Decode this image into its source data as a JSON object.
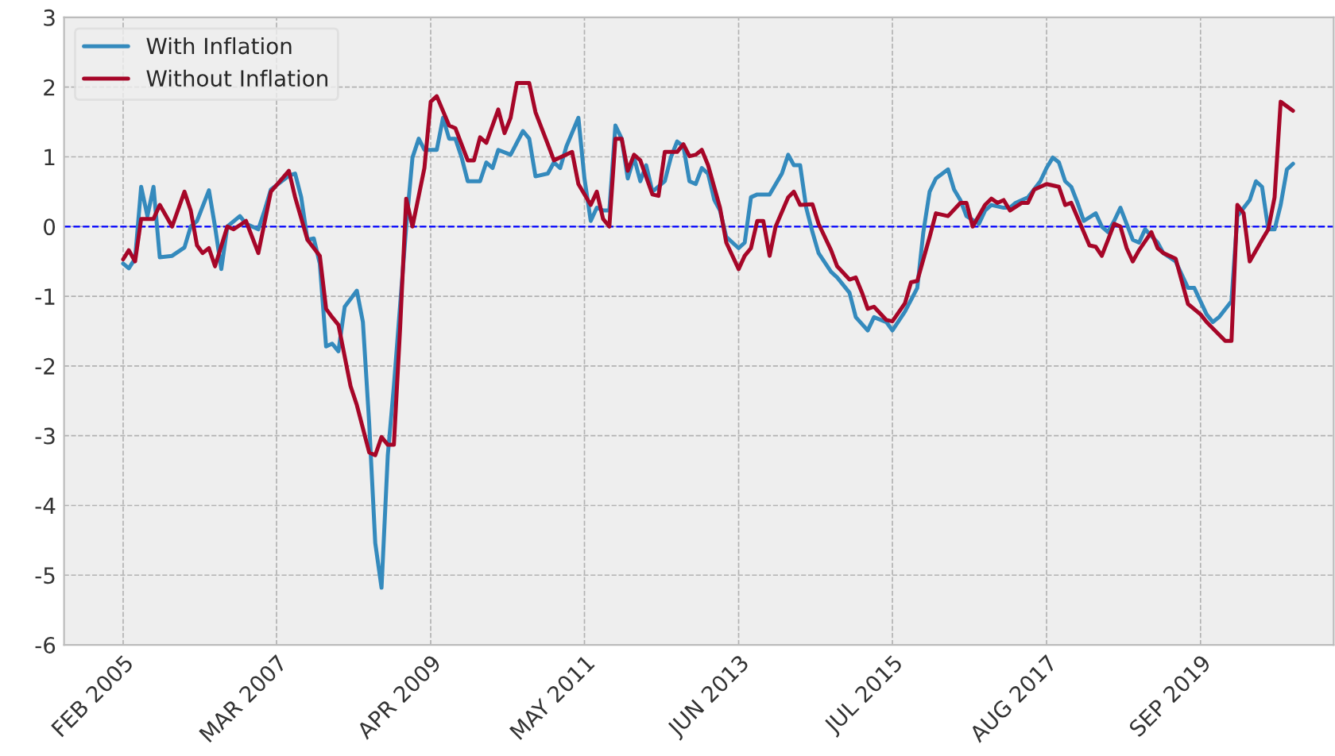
{
  "chart_data": {
    "type": "line",
    "series": [
      {
        "name": "With Inflation",
        "color": "#348abd",
        "x": [
          "2005-02",
          "2005-03",
          "2005-04",
          "2005-05",
          "2005-06",
          "2005-07",
          "2005-08",
          "2005-10",
          "2005-12",
          "2006-01",
          "2006-02",
          "2006-04",
          "2006-05",
          "2006-06",
          "2006-07",
          "2006-09",
          "2006-10",
          "2006-12",
          "2007-01",
          "2007-02",
          "2007-05",
          "2007-06",
          "2007-07",
          "2007-08",
          "2007-09",
          "2007-10",
          "2007-11",
          "2007-12",
          "2008-01",
          "2008-02",
          "2008-04",
          "2008-05",
          "2008-06",
          "2008-07",
          "2008-08",
          "2008-09",
          "2008-10",
          "2008-12",
          "2009-01",
          "2009-02",
          "2009-03",
          "2009-05",
          "2009-06",
          "2009-07",
          "2009-08",
          "2009-09",
          "2009-10",
          "2009-12",
          "2010-01",
          "2010-02",
          "2010-03",
          "2010-05",
          "2010-07",
          "2010-08",
          "2010-09",
          "2010-11",
          "2010-12",
          "2011-01",
          "2011-02",
          "2011-04",
          "2011-05",
          "2011-06",
          "2011-07",
          "2011-08",
          "2011-09",
          "2011-10",
          "2011-11",
          "2011-12",
          "2012-01",
          "2012-02",
          "2012-03",
          "2012-04",
          "2012-06",
          "2012-07",
          "2012-08",
          "2012-09",
          "2012-10",
          "2012-11",
          "2012-12",
          "2013-01",
          "2013-02",
          "2013-03",
          "2013-04",
          "2013-06",
          "2013-07",
          "2013-08",
          "2013-09",
          "2013-11",
          "2014-01",
          "2014-02",
          "2014-03",
          "2014-04",
          "2014-05",
          "2014-06",
          "2014-07",
          "2014-09",
          "2014-10",
          "2014-12",
          "2015-01",
          "2015-03",
          "2015-04",
          "2015-06",
          "2015-07",
          "2015-09",
          "2015-11",
          "2015-12",
          "2016-01",
          "2016-02",
          "2016-04",
          "2016-05",
          "2016-06",
          "2016-07",
          "2016-09",
          "2016-10",
          "2016-11",
          "2017-01",
          "2017-02",
          "2017-03",
          "2017-05",
          "2017-07",
          "2017-08",
          "2017-09",
          "2017-10",
          "2017-11",
          "2017-12",
          "2018-01",
          "2018-02",
          "2018-04",
          "2018-05",
          "2018-06",
          "2018-07",
          "2018-08",
          "2018-10",
          "2018-11",
          "2018-12",
          "2019-02",
          "2019-03",
          "2019-05",
          "2019-07",
          "2019-08",
          "2019-10",
          "2019-11",
          "2019-12",
          "2020-02",
          "2020-03",
          "2020-05",
          "2020-06",
          "2020-07",
          "2020-08",
          "2020-09",
          "2020-10",
          "2020-11",
          "2020-12"
        ],
        "values": [
          -0.53,
          -0.6,
          -0.46,
          0.57,
          0.15,
          0.57,
          -0.44,
          -0.42,
          -0.3,
          0,
          0.08,
          0.52,
          0,
          -0.61,
          0,
          0.15,
          0.04,
          -0.04,
          0.23,
          0.53,
          0.73,
          0.76,
          0.42,
          -0.19,
          -0.17,
          -0.53,
          -1.72,
          -1.68,
          -1.79,
          -1.15,
          -0.92,
          -1.37,
          -2.82,
          -4.54,
          -5.18,
          -3.28,
          -2.29,
          0,
          0.99,
          1.26,
          1.1,
          1.1,
          1.56,
          1.26,
          1.26,
          0.99,
          0.65,
          0.65,
          0.92,
          0.84,
          1.1,
          1.03,
          1.37,
          1.26,
          0.72,
          0.76,
          0.92,
          0.84,
          1.15,
          1.56,
          0.69,
          0.08,
          0.27,
          0.23,
          0.23,
          1.45,
          1.26,
          0.69,
          0.99,
          0.65,
          0.88,
          0.5,
          0.65,
          0.99,
          1.22,
          1.15,
          0.65,
          0.61,
          0.84,
          0.76,
          0.38,
          0.23,
          -0.15,
          -0.31,
          -0.23,
          0.42,
          0.46,
          0.46,
          0.76,
          1.03,
          0.88,
          0.88,
          0.27,
          -0.08,
          -0.38,
          -0.65,
          -0.73,
          -0.95,
          -1.3,
          -1.49,
          -1.3,
          -1.37,
          -1.49,
          -1.22,
          -0.88,
          -0.08,
          0.5,
          0.69,
          0.82,
          0.53,
          0.38,
          0.15,
          0.04,
          0.23,
          0.31,
          0.27,
          0.27,
          0.34,
          0.42,
          0.65,
          0.84,
          0.99,
          0.92,
          0.65,
          0.57,
          0.34,
          0.08,
          0.19,
          0,
          -0.08,
          0.08,
          0.27,
          -0.19,
          -0.23,
          -0.04,
          -0.23,
          -0.38,
          -0.5,
          -0.88,
          -0.88,
          -1.26,
          -1.37,
          -1.3,
          -1.07,
          0.15,
          0.38,
          0.65,
          0.57,
          -0.04,
          -0.04,
          0.31,
          0.82,
          0.9
        ]
      },
      {
        "name": "Without Inflation",
        "color": "#a60628",
        "x": [
          "2005-02",
          "2005-03",
          "2005-04",
          "2005-05",
          "2005-07",
          "2005-08",
          "2005-10",
          "2005-12",
          "2006-01",
          "2006-02",
          "2006-03",
          "2006-04",
          "2006-05",
          "2006-07",
          "2006-08",
          "2006-10",
          "2006-12",
          "2007-02",
          "2007-05",
          "2007-06",
          "2007-08",
          "2007-10",
          "2007-11",
          "2007-12",
          "2008-01",
          "2008-03",
          "2008-04",
          "2008-06",
          "2008-07",
          "2008-08",
          "2008-09",
          "2008-10",
          "2008-11",
          "2008-12",
          "2009-01",
          "2009-03",
          "2009-04",
          "2009-05",
          "2009-07",
          "2009-08",
          "2009-10",
          "2009-11",
          "2009-12",
          "2010-01",
          "2010-03",
          "2010-04",
          "2010-05",
          "2010-06",
          "2010-08",
          "2010-09",
          "2010-11",
          "2010-12",
          "2011-03",
          "2011-04",
          "2011-06",
          "2011-07",
          "2011-08",
          "2011-09",
          "2011-10",
          "2011-11",
          "2011-12",
          "2012-01",
          "2012-02",
          "2012-04",
          "2012-05",
          "2012-06",
          "2012-08",
          "2012-09",
          "2012-10",
          "2012-11",
          "2012-12",
          "2013-01",
          "2013-03",
          "2013-04",
          "2013-06",
          "2013-07",
          "2013-08",
          "2013-09",
          "2013-10",
          "2013-11",
          "2013-12",
          "2014-02",
          "2014-03",
          "2014-04",
          "2014-06",
          "2014-07",
          "2014-09",
          "2014-10",
          "2014-12",
          "2015-01",
          "2015-02",
          "2015-03",
          "2015-04",
          "2015-06",
          "2015-07",
          "2015-09",
          "2015-10",
          "2015-11",
          "2016-01",
          "2016-02",
          "2016-04",
          "2016-06",
          "2016-07",
          "2016-08",
          "2016-10",
          "2016-11",
          "2016-12",
          "2017-01",
          "2017-02",
          "2017-04",
          "2017-05",
          "2017-06",
          "2017-08",
          "2017-10",
          "2017-11",
          "2017-12",
          "2018-02",
          "2018-03",
          "2018-04",
          "2018-05",
          "2018-06",
          "2018-07",
          "2018-08",
          "2018-09",
          "2018-10",
          "2018-11",
          "2019-01",
          "2019-02",
          "2019-03",
          "2019-05",
          "2019-07",
          "2019-09",
          "2019-10",
          "2020-01",
          "2020-02",
          "2020-03",
          "2020-04",
          "2020-05",
          "2020-07",
          "2020-08",
          "2020-09",
          "2020-10",
          "2020-12"
        ],
        "values": [
          -0.47,
          -0.34,
          -0.5,
          0.11,
          0.11,
          0.31,
          0,
          0.5,
          0.23,
          -0.27,
          -0.38,
          -0.31,
          -0.57,
          0,
          -0.04,
          0.08,
          -0.38,
          0.5,
          0.8,
          0.42,
          -0.19,
          -0.42,
          -1.18,
          -1.3,
          -1.41,
          -2.29,
          -2.56,
          -3.24,
          -3.28,
          -3.02,
          -3.13,
          -3.13,
          -1.45,
          0.4,
          0,
          0.84,
          1.79,
          1.87,
          1.45,
          1.41,
          0.95,
          0.95,
          1.28,
          1.2,
          1.68,
          1.34,
          1.56,
          2.06,
          2.06,
          1.64,
          1.18,
          0.95,
          1.07,
          0.61,
          0.31,
          0.5,
          0.11,
          0,
          1.26,
          1.26,
          0.8,
          1.03,
          0.95,
          0.46,
          0.44,
          1.07,
          1.07,
          1.18,
          1.01,
          1.03,
          1.1,
          0.88,
          0.27,
          -0.23,
          -0.61,
          -0.42,
          -0.31,
          0.08,
          0.08,
          -0.42,
          0,
          0.42,
          0.5,
          0.31,
          0.32,
          0.04,
          -0.34,
          -0.57,
          -0.76,
          -0.73,
          -0.95,
          -1.18,
          -1.15,
          -1.34,
          -1.36,
          -1.1,
          -0.8,
          -0.78,
          -0.15,
          0.19,
          0.15,
          0.34,
          0.34,
          0,
          0.31,
          0.4,
          0.34,
          0.38,
          0.23,
          0.34,
          0.34,
          0.53,
          0.61,
          0.57,
          0.31,
          0.34,
          -0.08,
          -0.27,
          -0.29,
          -0.42,
          -0.19,
          0.04,
          0,
          -0.31,
          -0.5,
          -0.34,
          -0.08,
          -0.31,
          -0.38,
          -0.46,
          -1.11,
          -1.26,
          -1.37,
          -1.64,
          -1.64,
          0.31,
          0.19,
          -0.5,
          -0.19,
          -0.04,
          0.42,
          1.79,
          1.66
        ]
      }
    ],
    "xlim": [
      "2004-04-15",
      "2021-06-20"
    ],
    "xticks": [
      {
        "value": "2005-02-01",
        "label": "FEB 2005"
      },
      {
        "value": "2007-03-01",
        "label": "MAR 2007"
      },
      {
        "value": "2009-04-01",
        "label": "APR 2009"
      },
      {
        "value": "2011-05-01",
        "label": "MAY 2011"
      },
      {
        "value": "2013-06-01",
        "label": "JUN 2013"
      },
      {
        "value": "2015-07-01",
        "label": "JUL 2015"
      },
      {
        "value": "2017-08-01",
        "label": "AUG 2017"
      },
      {
        "value": "2019-09-01",
        "label": "SEP 2019"
      }
    ],
    "ylim": [
      -6,
      3
    ],
    "yticks": [
      -6,
      -5,
      -4,
      -3,
      -2,
      -1,
      0,
      1,
      2,
      3
    ],
    "ref_lines": [
      {
        "axis": "y",
        "value": 0,
        "color": "#0000ff",
        "line_style": "dashed"
      }
    ],
    "grid": true,
    "legend": "top left",
    "line_style": "solid"
  }
}
